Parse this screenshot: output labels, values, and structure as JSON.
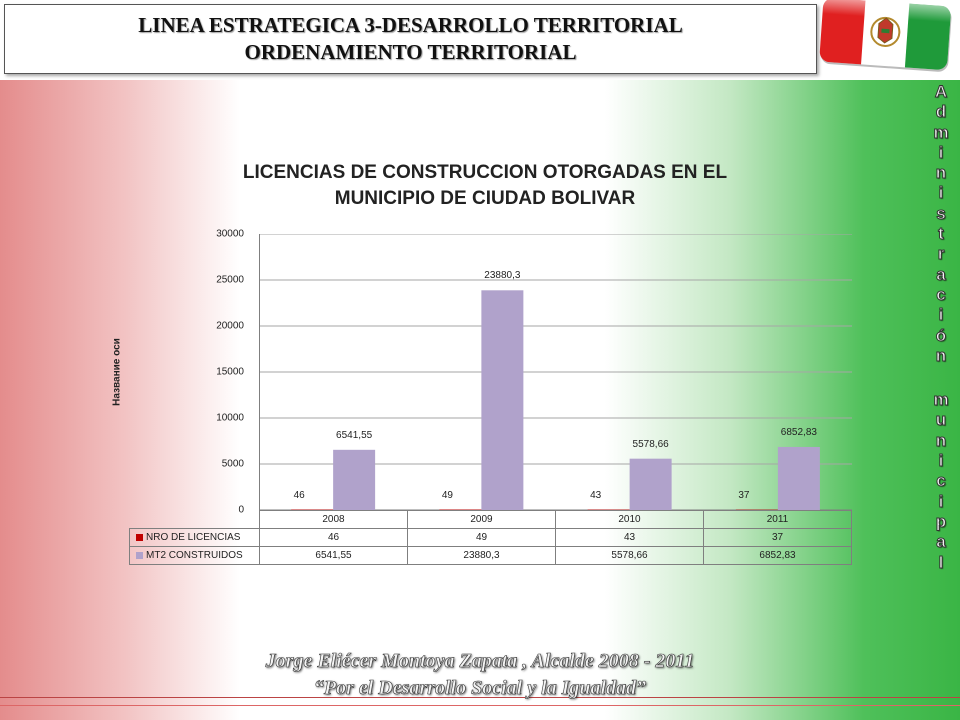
{
  "header": {
    "title_line1": "LINEA ESTRATEGICA 3-DESARROLLO TERRITORIAL",
    "title_line2": "ORDENAMIENTO TERRITORIAL"
  },
  "side_text": {
    "word1": [
      "A",
      "d",
      "m",
      "i",
      "n",
      "i",
      "s",
      "t",
      "r",
      "a",
      "c",
      "i",
      "ó",
      "n"
    ],
    "word2": [
      "m",
      "u",
      "n",
      "i",
      "c",
      "i",
      "p",
      "a",
      "l"
    ]
  },
  "footer": {
    "line1": "Jorge Eliécer Montoya Zapata , Alcalde  2008 - 2011",
    "line2": "“Por el Desarrollo Social  y la Igualdad”"
  },
  "colors": {
    "series1": "#c00000",
    "series2": "#b0a2cb",
    "flag_red": "#e02020",
    "flag_green": "#1f9a3a"
  },
  "chart_data": {
    "type": "bar",
    "title_line1": "LICENCIAS DE CONSTRUCCION OTORGADAS EN EL",
    "title_line2": "MUNICIPIO DE CIUDAD BOLIVAR",
    "ylabel": "Название оси",
    "categories": [
      "2008",
      "2009",
      "2010",
      "2011"
    ],
    "series": [
      {
        "name": "NRO DE LICENCIAS",
        "values": [
          46,
          49,
          43,
          37
        ],
        "labels": [
          "46",
          "49",
          "43",
          "37"
        ]
      },
      {
        "name": "MT2 CONSTRUIDOS",
        "values": [
          6541.55,
          23880.3,
          5578.66,
          6852.83
        ],
        "labels": [
          "6541,55",
          "23880,3",
          "5578,66",
          "6852,83"
        ]
      }
    ],
    "ylim": [
      0,
      30000
    ],
    "yticks": [
      "0",
      "5000",
      "10000",
      "15000",
      "20000",
      "25000",
      "30000"
    ],
    "grid": true,
    "data_table": true
  }
}
